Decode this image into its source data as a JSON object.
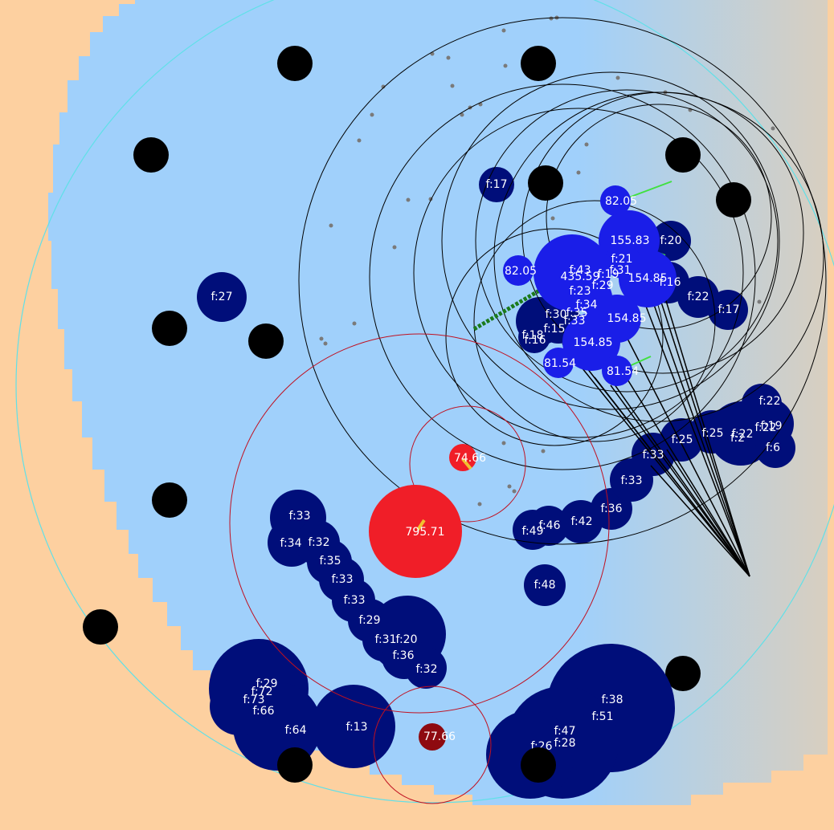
{
  "colors": {
    "background": "#fdd0a0",
    "zone": "#a0d0fb",
    "zone_edge": "#60e0e8",
    "food": "#000e7a",
    "player_cell": "#1a1ee8",
    "enemy_cell": "#f01e28",
    "enemy_dark": "#8e0a10",
    "virus": "#000000",
    "pellet": "#7a7a7a",
    "label": "#ffffff"
  },
  "food_cells": [
    {
      "label": "f:17"
    },
    {
      "label": "f:27"
    },
    {
      "label": "f:20"
    },
    {
      "label": "f:16"
    },
    {
      "label": "f:22"
    },
    {
      "label": "f:17"
    },
    {
      "label": "f:21"
    },
    {
      "label": "f:31"
    },
    {
      "label": "f:19"
    },
    {
      "label": "f:43"
    },
    {
      "label": "f:23"
    },
    {
      "label": "f:29"
    },
    {
      "label": "f:34"
    },
    {
      "label": "f:35"
    },
    {
      "label": "f:30"
    },
    {
      "label": "f:33"
    },
    {
      "label": "f:18"
    },
    {
      "label": "f:15"
    },
    {
      "label": "f:16"
    },
    {
      "label": "f:22"
    },
    {
      "label": "f:19"
    },
    {
      "label": "f:22"
    },
    {
      "label": "f:2"
    },
    {
      "label": "f:22"
    },
    {
      "label": "f:6"
    },
    {
      "label": "f:25"
    },
    {
      "label": "f:25"
    },
    {
      "label": "f:33"
    },
    {
      "label": "f:33"
    },
    {
      "label": "f:36"
    },
    {
      "label": "f:42"
    },
    {
      "label": "f:46"
    },
    {
      "label": "f:49"
    },
    {
      "label": "f:48"
    },
    {
      "label": "f:33"
    },
    {
      "label": "f:34"
    },
    {
      "label": "f:32"
    },
    {
      "label": "f:35"
    },
    {
      "label": "f:33"
    },
    {
      "label": "f:33"
    },
    {
      "label": "f:29"
    },
    {
      "label": "f:31"
    },
    {
      "label": "f:20"
    },
    {
      "label": "f:36"
    },
    {
      "label": "f:32"
    },
    {
      "label": "f:29"
    },
    {
      "label": "f:72"
    },
    {
      "label": "f:73"
    },
    {
      "label": "f:66"
    },
    {
      "label": "f:64"
    },
    {
      "label": "f:13"
    },
    {
      "label": "f:38"
    },
    {
      "label": "f:51"
    },
    {
      "label": "f:47"
    },
    {
      "label": "f:26"
    },
    {
      "label": "f:28"
    }
  ],
  "player_cells": [
    {
      "label": "82.05"
    },
    {
      "label": "155.83"
    },
    {
      "label": "82.05"
    },
    {
      "label": "435.59"
    },
    {
      "label": "154.85"
    },
    {
      "label": "154.85"
    },
    {
      "label": "154.85"
    },
    {
      "label": "81.54"
    },
    {
      "label": "81.54"
    }
  ],
  "enemy_cells": [
    {
      "label": "795.71"
    },
    {
      "label": "74.66"
    },
    {
      "label": "77.66"
    }
  ]
}
